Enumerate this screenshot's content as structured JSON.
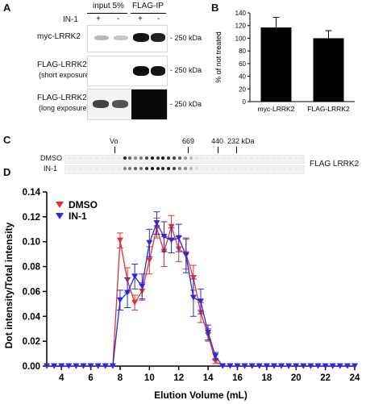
{
  "panelA": {
    "letter": "A",
    "col_input": "input 5%",
    "col_ip": "FLAG-IP",
    "treat_label": "IN-1",
    "treat_signs": [
      "+",
      "-",
      "+",
      "-"
    ],
    "rows": [
      {
        "label": "myc-LRRK2",
        "sublabel": "",
        "marker": "- 250 kDa"
      },
      {
        "label": "FLAG-LRRK2",
        "sublabel": "(short exposure)",
        "marker": "- 250 kDa"
      },
      {
        "label": "FLAG-LRRK2",
        "sublabel": "(long exposure)",
        "marker": "- 250 kDa"
      }
    ]
  },
  "panelB": {
    "letter": "B",
    "chart_data": {
      "type": "bar",
      "categories": [
        "myc-LRRK2",
        "FLAG-LRRK2"
      ],
      "values": [
        117,
        100
      ],
      "errors": [
        16,
        12
      ],
      "ylabel": "% of not treated",
      "ylim": [
        0,
        140
      ],
      "yticks": [
        "0",
        "20",
        "40",
        "60",
        "80",
        "100",
        "120",
        "140"
      ],
      "bar_color": "#000000"
    }
  },
  "panelC": {
    "letter": "C",
    "row_labels": [
      "DMSO",
      "IN-1"
    ],
    "markers": [
      "Vo",
      "669",
      "440",
      "232 kDa"
    ],
    "right_label": "FLAG LRRK2"
  },
  "panelD": {
    "letter": "D",
    "chart_data": {
      "type": "line",
      "xlabel": "Elution Volume (mL)",
      "ylabel": "Dot intensity/Total intensity",
      "xlim": [
        3,
        24
      ],
      "ylim": [
        0,
        0.14
      ],
      "xticks": [
        "4",
        "6",
        "8",
        "10",
        "12",
        "14",
        "16",
        "18",
        "20",
        "22",
        "24"
      ],
      "yticks": [
        "0.00",
        "0.02",
        "0.04",
        "0.06",
        "0.08",
        "0.10",
        "0.12",
        "0.14"
      ],
      "x": [
        3,
        3.5,
        4,
        4.5,
        5,
        5.5,
        6,
        6.5,
        7,
        7.5,
        8,
        8.5,
        9,
        9.5,
        10,
        10.5,
        11,
        11.5,
        12,
        12.5,
        13,
        13.5,
        14,
        14.5,
        15,
        15.5,
        16,
        16.5,
        17,
        17.5,
        18,
        18.5,
        19,
        19.5,
        20,
        20.5,
        21,
        21.5,
        22,
        22.5,
        23,
        23.5,
        24
      ],
      "series": [
        {
          "name": "DMSO",
          "color": "#e0322e",
          "values": [
            0,
            0,
            0,
            0,
            0,
            0,
            0,
            0,
            0,
            0,
            0.101,
            0.069,
            0.051,
            0.06,
            0.085,
            0.111,
            0.092,
            0.112,
            0.094,
            0.09,
            0.071,
            0.043,
            0.025,
            0.004,
            0,
            0,
            0,
            0,
            0,
            0,
            0,
            0,
            0,
            0,
            0,
            0,
            0,
            0,
            0,
            0,
            0,
            0,
            0
          ],
          "errors": [
            0,
            0,
            0,
            0,
            0,
            0,
            0,
            0,
            0,
            0,
            0.006,
            0.01,
            0.006,
            0.007,
            0.011,
            0.008,
            0.012,
            0.009,
            0.01,
            0.012,
            0.01,
            0.008,
            0.005,
            0.002,
            0,
            0,
            0,
            0,
            0,
            0,
            0,
            0,
            0,
            0,
            0,
            0,
            0,
            0,
            0,
            0,
            0,
            0,
            0
          ]
        },
        {
          "name": "IN-1",
          "color": "#2a2ad8",
          "values": [
            0,
            0,
            0,
            0,
            0,
            0,
            0,
            0,
            0,
            0,
            0.053,
            0.059,
            0.072,
            0.064,
            0.099,
            0.115,
            0.104,
            0.101,
            0.103,
            0.089,
            0.055,
            0.052,
            0.027,
            0.008,
            0,
            0,
            0,
            0,
            0,
            0,
            0,
            0,
            0,
            0,
            0,
            0,
            0,
            0,
            0,
            0,
            0,
            0,
            0
          ],
          "errors": [
            0,
            0,
            0,
            0,
            0,
            0,
            0,
            0,
            0,
            0,
            0.008,
            0.012,
            0.01,
            0.01,
            0.011,
            0.009,
            0.012,
            0.01,
            0.011,
            0.014,
            0.015,
            0.01,
            0.006,
            0.003,
            0,
            0,
            0,
            0,
            0,
            0,
            0,
            0,
            0,
            0,
            0,
            0,
            0,
            0,
            0,
            0,
            0,
            0,
            0
          ]
        }
      ],
      "legend_position": "top-left"
    }
  }
}
